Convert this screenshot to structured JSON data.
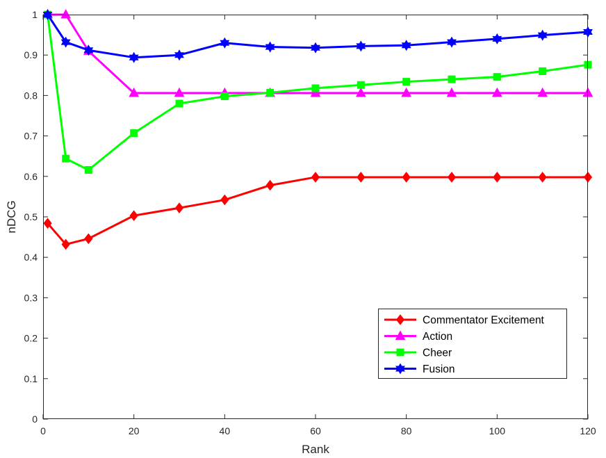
{
  "chart_data": {
    "type": "line",
    "title": "",
    "xlabel": "Rank",
    "ylabel": "nDCG",
    "xlim": [
      0,
      120
    ],
    "ylim": [
      0,
      1
    ],
    "x_ticks": [
      0,
      20,
      40,
      60,
      80,
      100,
      120
    ],
    "y_ticks": [
      0,
      0.1,
      0.2,
      0.3,
      0.4,
      0.5,
      0.6,
      0.7,
      0.8,
      0.9,
      1
    ],
    "y_tick_labels": [
      "0",
      "0.1",
      "0.2",
      "0.3",
      "0.4",
      "0.5",
      "0.6",
      "0.7",
      "0.8",
      "0.9",
      "1"
    ],
    "grid": false,
    "legend_position": "bottom-right",
    "x": [
      1,
      5,
      10,
      20,
      30,
      40,
      50,
      60,
      70,
      80,
      90,
      100,
      110,
      120
    ],
    "series": [
      {
        "name": "Commentator Excitement",
        "color": "#ff0000",
        "marker": "diamond",
        "values": [
          0.484,
          0.432,
          0.446,
          0.503,
          0.522,
          0.542,
          0.578,
          0.598,
          0.598,
          0.598,
          0.598,
          0.598,
          0.598,
          0.598
        ]
      },
      {
        "name": "Action",
        "color": "#ff00ff",
        "marker": "triangle",
        "values": [
          1.0,
          1.0,
          0.91,
          0.806,
          0.806,
          0.806,
          0.806,
          0.806,
          0.806,
          0.806,
          0.806,
          0.806,
          0.806,
          0.806
        ]
      },
      {
        "name": "Cheer",
        "color": "#00ff00",
        "marker": "square",
        "values": [
          1.0,
          0.644,
          0.616,
          0.707,
          0.78,
          0.798,
          0.807,
          0.818,
          0.826,
          0.834,
          0.84,
          0.846,
          0.86,
          0.876
        ]
      },
      {
        "name": "Fusion",
        "color": "#0000ff",
        "marker": "star",
        "values": [
          1.0,
          0.932,
          0.912,
          0.894,
          0.9,
          0.93,
          0.92,
          0.918,
          0.922,
          0.924,
          0.932,
          0.94,
          0.949,
          0.957
        ]
      }
    ]
  }
}
